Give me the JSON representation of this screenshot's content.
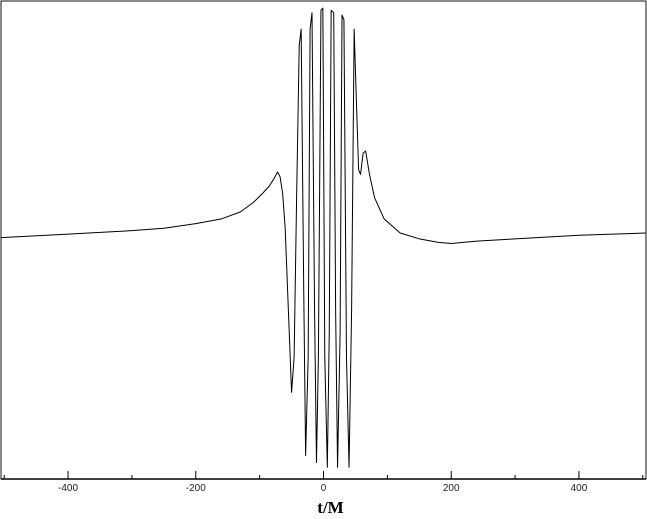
{
  "chart_data": {
    "type": "line",
    "title": "",
    "xlabel": "t/M",
    "ylabel": "",
    "xlim": [
      -505,
      505
    ],
    "ylim": [
      -1.02,
      1.02
    ],
    "x_ticks": [
      -400,
      -200,
      0,
      200,
      400
    ],
    "x_tick_labels": [
      "-400",
      "-200",
      "0",
      "200",
      "400"
    ],
    "grid": false,
    "legend": "none",
    "line_color": "#000000",
    "series": [
      {
        "x": [
          -505,
          -400,
          -300,
          -250,
          -200,
          -160,
          -130,
          -110,
          -95,
          -85,
          -78,
          -72,
          -68,
          -64,
          -60,
          -55,
          -50,
          -46,
          -42,
          -38,
          -35,
          -31,
          -28,
          -24,
          -21,
          -18,
          -14,
          -11,
          -8,
          -4,
          -1,
          2,
          6,
          9,
          12,
          16,
          19,
          22,
          26,
          29,
          32,
          36,
          40,
          44,
          48,
          52,
          55,
          58,
          62,
          66,
          72,
          80,
          95,
          120,
          150,
          180,
          200,
          240,
          300,
          400,
          505
        ],
        "y": [
          0.01,
          0.025,
          0.04,
          0.05,
          0.07,
          0.09,
          0.12,
          0.16,
          0.2,
          0.23,
          0.26,
          0.29,
          0.27,
          0.2,
          0.05,
          -0.3,
          -0.65,
          -0.5,
          0.2,
          0.83,
          0.9,
          -0.2,
          -0.92,
          -0.5,
          0.9,
          0.97,
          -0.3,
          -0.95,
          -0.5,
          0.98,
          0.99,
          -0.5,
          -0.97,
          -0.4,
          0.98,
          0.97,
          -0.3,
          -0.97,
          -0.4,
          0.96,
          0.94,
          -0.5,
          -0.97,
          -0.3,
          0.9,
          0.55,
          0.3,
          0.28,
          0.37,
          0.38,
          0.28,
          0.18,
          0.09,
          0.03,
          0.005,
          -0.01,
          -0.015,
          -0.005,
          0.005,
          0.02,
          0.03
        ]
      }
    ]
  }
}
